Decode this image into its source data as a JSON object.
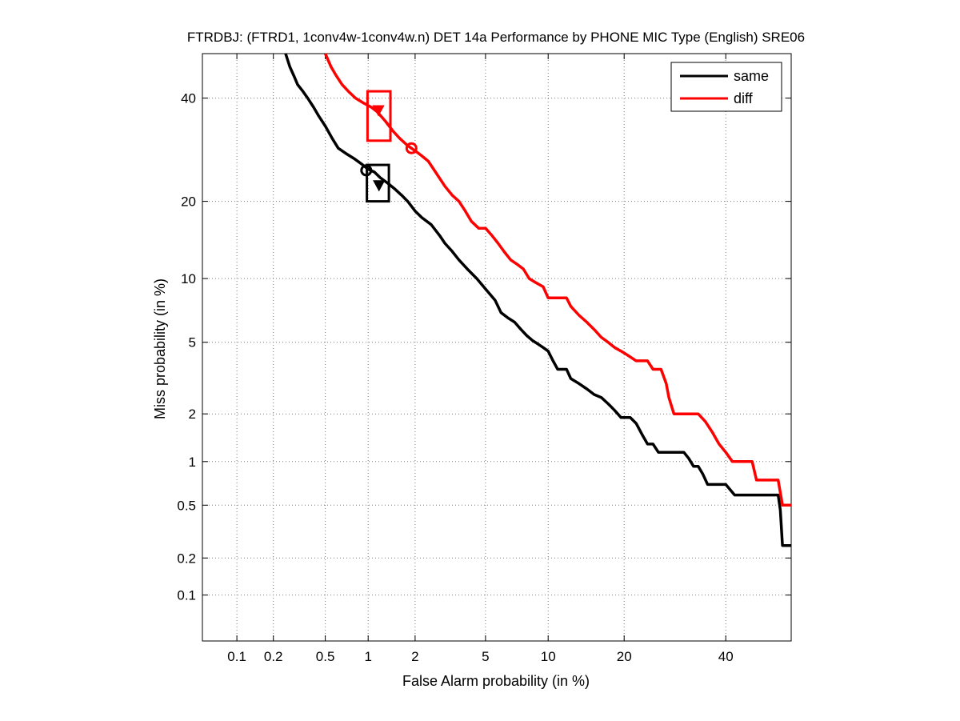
{
  "chart_data": {
    "type": "line",
    "title": "FTRDBJ: (FTRD1, 1conv4w-1conv4w.n) DET 14a Performance by PHONE MIC Type (English) SRE06",
    "xlabel": "False Alarm probability (in %)",
    "ylabel": "Miss probability (in %)",
    "x_scale": "probit",
    "y_scale": "probit",
    "xlim": [
      0.05,
      55
    ],
    "ylim": [
      0.04,
      50
    ],
    "xticks": [
      0.1,
      0.2,
      0.5,
      1,
      2,
      5,
      10,
      20,
      40
    ],
    "xtick_labels": [
      "0.1",
      "0.2",
      "0.5",
      "1",
      "2",
      "5",
      "10",
      "20",
      "40"
    ],
    "yticks": [
      0.1,
      0.2,
      0.5,
      1,
      2,
      5,
      10,
      20,
      40
    ],
    "ytick_labels": [
      "0.1",
      "0.2",
      "0.5",
      "1",
      "2",
      "5",
      "10",
      "20",
      "40"
    ],
    "grid": true,
    "legend_position": "top-right",
    "series": [
      {
        "name": "same",
        "color": "#000000",
        "points": [
          [
            0.25,
            50
          ],
          [
            0.27,
            47
          ],
          [
            0.29,
            45
          ],
          [
            0.31,
            43
          ],
          [
            0.34,
            41.5
          ],
          [
            0.37,
            40
          ],
          [
            0.41,
            38
          ],
          [
            0.45,
            36
          ],
          [
            0.5,
            34
          ],
          [
            0.56,
            31.5
          ],
          [
            0.62,
            29.5
          ],
          [
            0.7,
            28.5
          ],
          [
            0.8,
            27.5
          ],
          [
            0.9,
            26.5
          ],
          [
            1.0,
            25.5
          ],
          [
            1.1,
            25
          ],
          [
            1.2,
            24
          ],
          [
            1.35,
            23
          ],
          [
            1.5,
            22
          ],
          [
            1.65,
            21
          ],
          [
            1.8,
            20
          ],
          [
            2.0,
            18.5
          ],
          [
            2.2,
            17.5
          ],
          [
            2.5,
            16.5
          ],
          [
            2.8,
            15
          ],
          [
            3.0,
            14
          ],
          [
            3.3,
            13
          ],
          [
            3.6,
            12
          ],
          [
            4.0,
            11
          ],
          [
            4.5,
            10
          ],
          [
            5.0,
            9
          ],
          [
            5.6,
            8
          ],
          [
            6.0,
            7
          ],
          [
            6.5,
            6.6
          ],
          [
            7.0,
            6.3
          ],
          [
            7.5,
            5.8
          ],
          [
            8.0,
            5.4
          ],
          [
            8.5,
            5.1
          ],
          [
            9.0,
            4.9
          ],
          [
            9.5,
            4.7
          ],
          [
            10.0,
            4.5
          ],
          [
            10.5,
            4.0
          ],
          [
            11.0,
            3.6
          ],
          [
            12.0,
            3.6
          ],
          [
            12.5,
            3.2
          ],
          [
            13.5,
            3.0
          ],
          [
            14.5,
            2.8
          ],
          [
            15.5,
            2.6
          ],
          [
            16.5,
            2.5
          ],
          [
            17.5,
            2.3
          ],
          [
            18.5,
            2.1
          ],
          [
            19.5,
            1.9
          ],
          [
            21.0,
            1.9
          ],
          [
            22.0,
            1.75
          ],
          [
            23.0,
            1.5
          ],
          [
            24.0,
            1.3
          ],
          [
            25.0,
            1.3
          ],
          [
            26.0,
            1.15
          ],
          [
            28.0,
            1.15
          ],
          [
            31.0,
            1.15
          ],
          [
            32.0,
            1.05
          ],
          [
            33.0,
            0.93
          ],
          [
            34.0,
            0.93
          ],
          [
            35.0,
            0.82
          ],
          [
            36.0,
            0.7
          ],
          [
            40.0,
            0.7
          ],
          [
            42.0,
            0.59
          ],
          [
            50.0,
            0.59
          ],
          [
            52.0,
            0.59
          ],
          [
            52.5,
            0.46
          ],
          [
            53.0,
            0.25
          ],
          [
            55.0,
            0.25
          ]
        ]
      },
      {
        "name": "diff",
        "color": "#ff0000",
        "points": [
          [
            0.5,
            50
          ],
          [
            0.55,
            47
          ],
          [
            0.6,
            45
          ],
          [
            0.66,
            43
          ],
          [
            0.73,
            41.5
          ],
          [
            0.82,
            40
          ],
          [
            0.92,
            39
          ],
          [
            1.05,
            38
          ],
          [
            1.15,
            37
          ],
          [
            1.3,
            35
          ],
          [
            1.45,
            33
          ],
          [
            1.6,
            31.5
          ],
          [
            1.8,
            30
          ],
          [
            2.0,
            29
          ],
          [
            2.2,
            28
          ],
          [
            2.4,
            27
          ],
          [
            2.65,
            25
          ],
          [
            3.0,
            22.5
          ],
          [
            3.3,
            21
          ],
          [
            3.6,
            20
          ],
          [
            3.9,
            18.5
          ],
          [
            4.2,
            17
          ],
          [
            4.6,
            16
          ],
          [
            5.0,
            16
          ],
          [
            5.4,
            15
          ],
          [
            5.8,
            14
          ],
          [
            6.2,
            13
          ],
          [
            6.7,
            12
          ],
          [
            7.2,
            11.5
          ],
          [
            7.7,
            11
          ],
          [
            8.2,
            10
          ],
          [
            8.8,
            9.6
          ],
          [
            9.5,
            9.2
          ],
          [
            10.0,
            8.2
          ],
          [
            12.0,
            8.2
          ],
          [
            12.5,
            7.5
          ],
          [
            13.5,
            6.8
          ],
          [
            14.5,
            6.3
          ],
          [
            15.5,
            5.8
          ],
          [
            16.5,
            5.3
          ],
          [
            17.5,
            5.0
          ],
          [
            18.5,
            4.7
          ],
          [
            19.5,
            4.5
          ],
          [
            20.5,
            4.3
          ],
          [
            22.0,
            4.0
          ],
          [
            24.0,
            4.0
          ],
          [
            25.0,
            3.6
          ],
          [
            26.5,
            3.6
          ],
          [
            27.5,
            3.0
          ],
          [
            28.0,
            2.5
          ],
          [
            29.0,
            2.0
          ],
          [
            34.0,
            2.0
          ],
          [
            35.5,
            1.8
          ],
          [
            37.0,
            1.55
          ],
          [
            38.5,
            1.3
          ],
          [
            40.0,
            1.15
          ],
          [
            41.5,
            1.0
          ],
          [
            46.0,
            1.0
          ],
          [
            47.0,
            0.75
          ],
          [
            52.0,
            0.75
          ],
          [
            53.0,
            0.5
          ],
          [
            55.0,
            0.5
          ]
        ]
      }
    ],
    "markers": [
      {
        "series": "same",
        "kind": "circle",
        "x": 0.97,
        "y": 25.3
      },
      {
        "series": "same",
        "kind": "triangle",
        "x": 1.18,
        "y": 22.7
      },
      {
        "series": "same",
        "kind": "box",
        "x_range": [
          0.98,
          1.37
        ],
        "y_range": [
          20,
          26.3
        ]
      },
      {
        "series": "diff",
        "kind": "circle",
        "x": 1.9,
        "y": 29.5
      },
      {
        "series": "diff",
        "kind": "triangle",
        "x": 1.17,
        "y": 37.4
      },
      {
        "series": "diff",
        "kind": "box",
        "x_range": [
          0.99,
          1.4
        ],
        "y_range": [
          31,
          41.5
        ]
      }
    ]
  }
}
